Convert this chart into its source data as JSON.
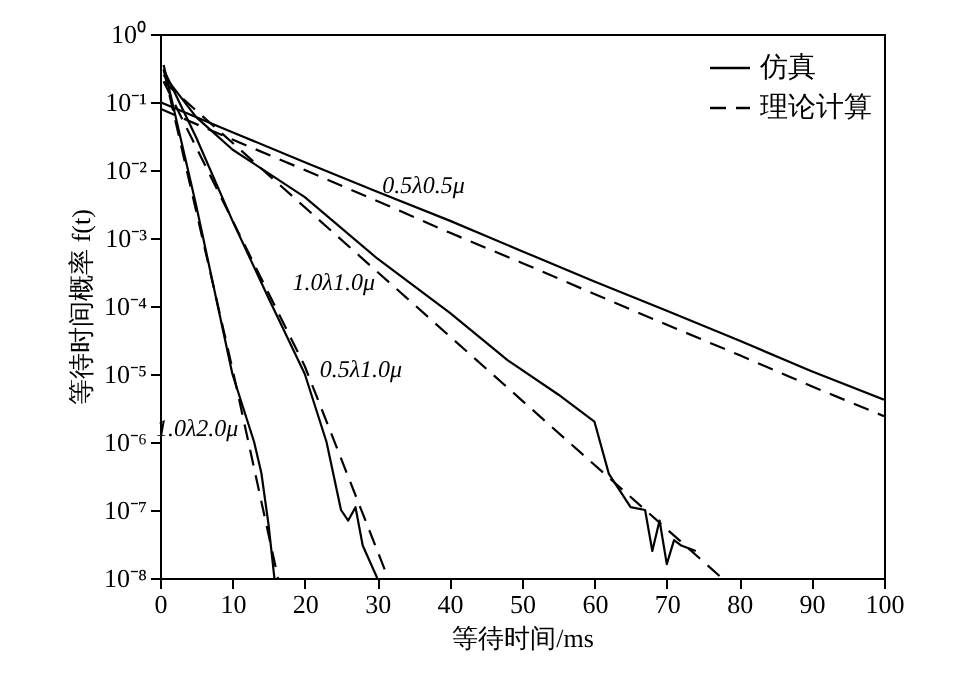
{
  "chart_data": {
    "type": "line",
    "xlabel": "等待时间/ms",
    "ylabel": "等待时间概率 f(t)",
    "log": "y",
    "xlim": [
      0,
      100
    ],
    "xticks": [
      0,
      10,
      20,
      30,
      40,
      50,
      60,
      70,
      80,
      90,
      100
    ],
    "ylim": [
      1e-08,
      1
    ],
    "yticks": [
      {
        "value": 1,
        "label": "10⁰"
      },
      {
        "value": 0.1,
        "label": "10⁻¹"
      },
      {
        "value": 0.01,
        "label": "10⁻²"
      },
      {
        "value": 0.001,
        "label": "10⁻³"
      },
      {
        "value": 0.0001,
        "label": "10⁻⁴"
      },
      {
        "value": 1e-05,
        "label": "10⁻⁵"
      },
      {
        "value": 1e-06,
        "label": "10⁻⁶"
      },
      {
        "value": 1e-07,
        "label": "10⁻⁷"
      },
      {
        "value": 1e-08,
        "label": "10⁻⁸"
      }
    ],
    "grid": false,
    "legend": "top right",
    "series": [
      {
        "name": "仿真",
        "color": "#000000",
        "line_style": "solid",
        "x": [
          0,
          10,
          20,
          30,
          40,
          50,
          60,
          70,
          80,
          90,
          100
        ],
        "values": [
          0.1,
          0.036,
          0.013,
          0.0048,
          0.0018,
          0.00064,
          0.00023,
          8.5e-05,
          3.1e-05,
          1.1e-05,
          4.2e-06
        ]
      },
      {
        "name": "理论计算",
        "color": "#000000",
        "line_style": "dashed",
        "x": [
          0,
          10,
          20,
          30,
          40,
          50,
          60,
          70,
          80,
          90,
          100
        ],
        "values": [
          0.08,
          0.028,
          0.01,
          0.0035,
          0.0012,
          0.00043,
          0.00015,
          5.3e-05,
          1.9e-05,
          6.6e-06,
          2.4e-06
        ]
      },
      {
        "color": "#000000",
        "line_style": "solid",
        "x": [
          0.5,
          5,
          10,
          20,
          30,
          40,
          48,
          55,
          60,
          62,
          65,
          67,
          68,
          69,
          70,
          71,
          72,
          74
        ],
        "values": [
          0.25,
          0.06,
          0.02,
          0.004,
          0.0005,
          8e-05,
          1.6e-05,
          5e-06,
          2e-06,
          3.4e-07,
          1.1e-07,
          1e-07,
          2.5e-08,
          7e-08,
          1.6e-08,
          3.6e-08,
          3e-08,
          2.5e-08
        ]
      },
      {
        "color": "#000000",
        "line_style": "dashed",
        "x": [
          0.5,
          40,
          77.6
        ],
        "values": [
          0.2,
          3.6e-05,
          1e-08
        ]
      },
      {
        "color": "#000000",
        "line_style": "solid",
        "x": [
          0.5,
          5,
          10,
          15,
          20,
          23,
          25,
          26,
          27,
          28,
          30
        ],
        "values": [
          0.3,
          0.03,
          0.0018,
          0.00013,
          1e-05,
          1e-06,
          1e-07,
          7e-08,
          1.1e-07,
          3e-08,
          1e-08
        ]
      },
      {
        "color": "#000000",
        "line_style": "dashed",
        "x": [
          0.5,
          20,
          31.5
        ],
        "values": [
          0.2,
          1.3e-05,
          1e-08
        ]
      },
      {
        "color": "#000000",
        "line_style": "solid",
        "x": [
          0.5,
          5,
          10,
          13,
          14,
          15,
          15.8
        ],
        "values": [
          0.35,
          0.003,
          1e-05,
          1e-06,
          3.5e-07,
          6e-08,
          1e-08
        ]
      },
      {
        "color": "#000000",
        "line_style": "dashed",
        "x": [
          0.5,
          10,
          16.3
        ],
        "values": [
          0.3,
          1.2e-05,
          1e-08
        ]
      }
    ],
    "annotations": [
      {
        "text": "0.5λ0.5μ",
        "x": 29.6,
        "y": 0.006
      },
      {
        "text": "1.0λ1.0μ",
        "x": 24,
        "y": 0.001
      },
      {
        "text": "0.5λ1.0μ",
        "x": 20.4,
        "y": 1.2e-05
      },
      {
        "text": "1.0λ2.0μ",
        "x": 10,
        "y": 1e-05
      }
    ]
  }
}
